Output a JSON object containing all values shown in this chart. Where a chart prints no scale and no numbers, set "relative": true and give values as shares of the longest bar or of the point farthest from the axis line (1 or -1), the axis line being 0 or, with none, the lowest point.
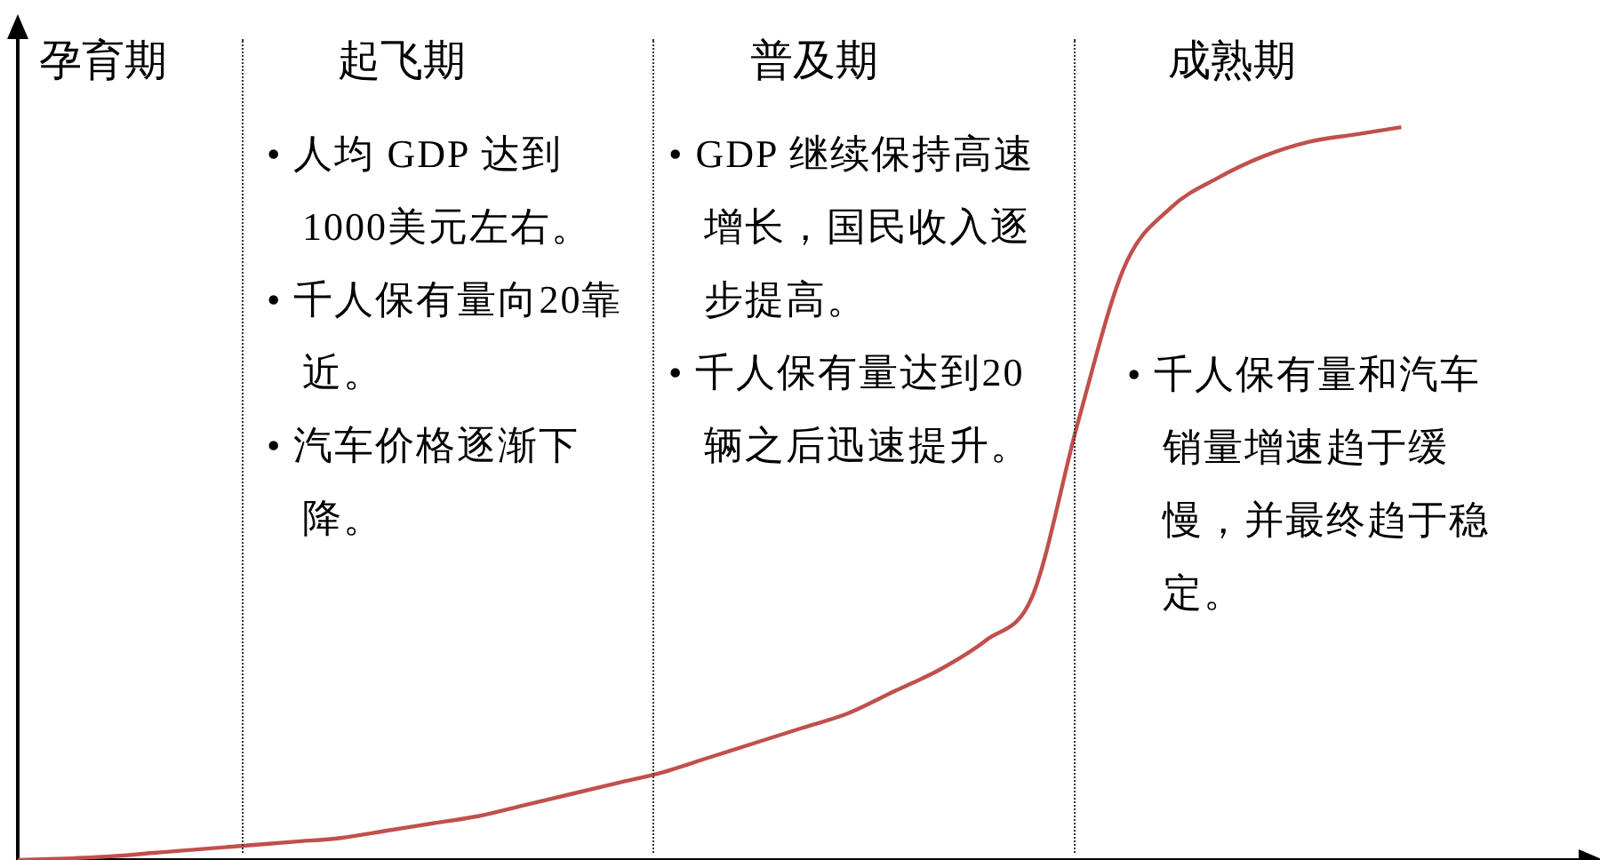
{
  "chart_data": {
    "type": "line",
    "relative": true,
    "color": "#c0504d",
    "marker": "none",
    "line_style": "solid",
    "legend": false,
    "grid": false,
    "tick_labels": false,
    "categories": [
      null,
      null,
      null,
      null,
      null,
      null,
      null,
      null,
      null,
      null,
      null,
      null,
      null,
      null,
      null,
      null,
      null,
      null,
      null,
      null,
      null,
      null,
      null,
      null,
      null,
      null,
      null,
      null,
      null,
      null,
      null,
      null,
      null,
      null,
      null
    ],
    "values": [
      0,
      0.002,
      0.005,
      0.01,
      0.015,
      0.02,
      0.025,
      0.03,
      0.04,
      0.05,
      0.06,
      0.075,
      0.09,
      0.105,
      0.12,
      0.14,
      0.16,
      0.18,
      0.2,
      0.23,
      0.26,
      0.3,
      0.36,
      0.6,
      0.81,
      0.89,
      0.93,
      0.96,
      0.98,
      0.99,
      1,
      null,
      null,
      null,
      null
    ],
    "annotations": [
      "孕育期",
      "起飞期",
      "普及期",
      "成熟期",
      "• 人均 GDP 达到1000美元左右。",
      "• 千人保有量向20靠近。",
      "• 汽车价格逐渐下降。",
      "• GDP 继续保持高速增长，国民收入逐步提高。",
      "• 千人保有量达到20辆之后迅速提升。",
      "• 千人保有量和汽车销量增速趋于缓慢，并最终趋于稳定。"
    ]
  }
}
